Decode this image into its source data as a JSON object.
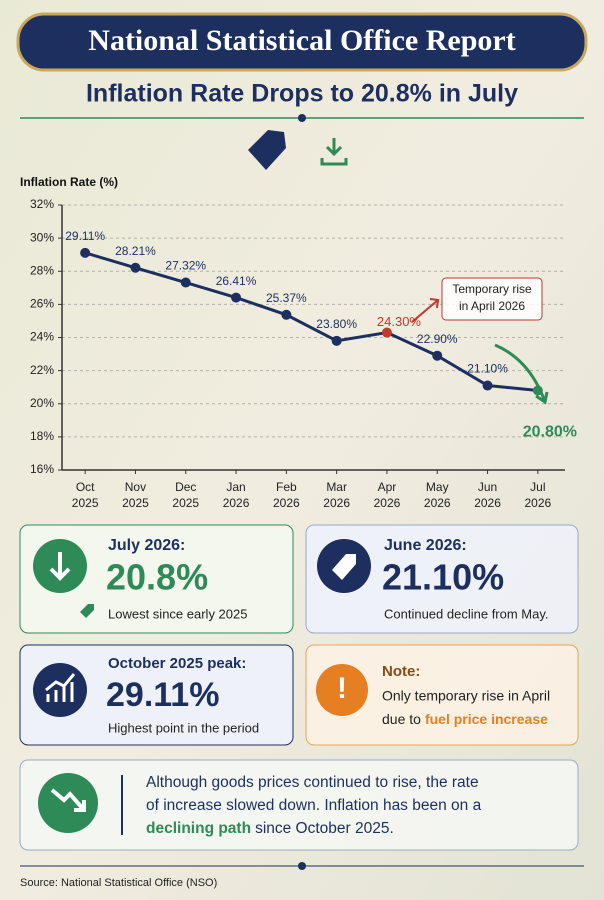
{
  "header": {
    "title": "National Statistical Office Report",
    "subtitle": "Inflation Rate Drops to 20.8% in July"
  },
  "chart_data": {
    "type": "line",
    "y_axis_label": "Inflation Rate (%)",
    "categories": [
      "Oct 2025",
      "Nov 2025",
      "Dec 2025",
      "Jan 2026",
      "Feb 2026",
      "Mar 2026",
      "Apr 2026",
      "May 2026",
      "Jun 2026",
      "Jul 2026"
    ],
    "values": [
      29.11,
      28.21,
      27.32,
      26.41,
      25.37,
      23.8,
      24.3,
      22.9,
      21.1,
      20.8
    ],
    "value_labels": [
      "29.11%",
      "28.21%",
      "27.32%",
      "26.41%",
      "25.37%",
      "23.80%",
      "24.30%",
      "22.90%",
      "21.10%",
      "20.80%"
    ],
    "color": "#1c2f5f",
    "point_colors": [
      "#1c2f5f",
      "#1c2f5f",
      "#1c2f5f",
      "#1c2f5f",
      "#1c2f5f",
      "#1c2f5f",
      "#c0392b",
      "#1c2f5f",
      "#1c2f5f",
      "#2e8b57"
    ],
    "ylim": [
      16,
      32
    ],
    "yticks": [
      {
        "value": 16,
        "label": "16%"
      },
      {
        "value": 18,
        "label": "18%"
      },
      {
        "value": 20,
        "label": "20%"
      },
      {
        "value": 22,
        "label": "22%"
      },
      {
        "value": 24,
        "label": "24%"
      },
      {
        "value": 26,
        "label": "26%"
      },
      {
        "value": 28,
        "label": "28%"
      },
      {
        "value": 30,
        "label": "30%"
      },
      {
        "value": 32,
        "label": "32%"
      }
    ],
    "grid": true,
    "annotation": [
      "Temporary rise",
      "in April 2026"
    ]
  },
  "cards": [
    {
      "heading": "July 2026:",
      "value": "20.8%",
      "note": "Lowest since early 2025"
    },
    {
      "heading": "June 2026:",
      "value": "21.10%",
      "note": "Continued decline from May."
    },
    {
      "heading": "October 2025 peak:",
      "value": "29.11%",
      "note": "Highest point in the period"
    }
  ],
  "note_card": {
    "heading": "Note:",
    "lines": [
      "Only temporary rise in April",
      "due to"
    ],
    "highlight": "fuel price increase"
  },
  "summary": {
    "lines": [
      "Although goods prices continued to rise, the rate",
      "of increase slowed down. Inflation has been on a"
    ],
    "highlight": "declining path",
    "tail": "since October 2025."
  },
  "footer": {
    "source": "Source: National Statistical Office (NSO)"
  }
}
